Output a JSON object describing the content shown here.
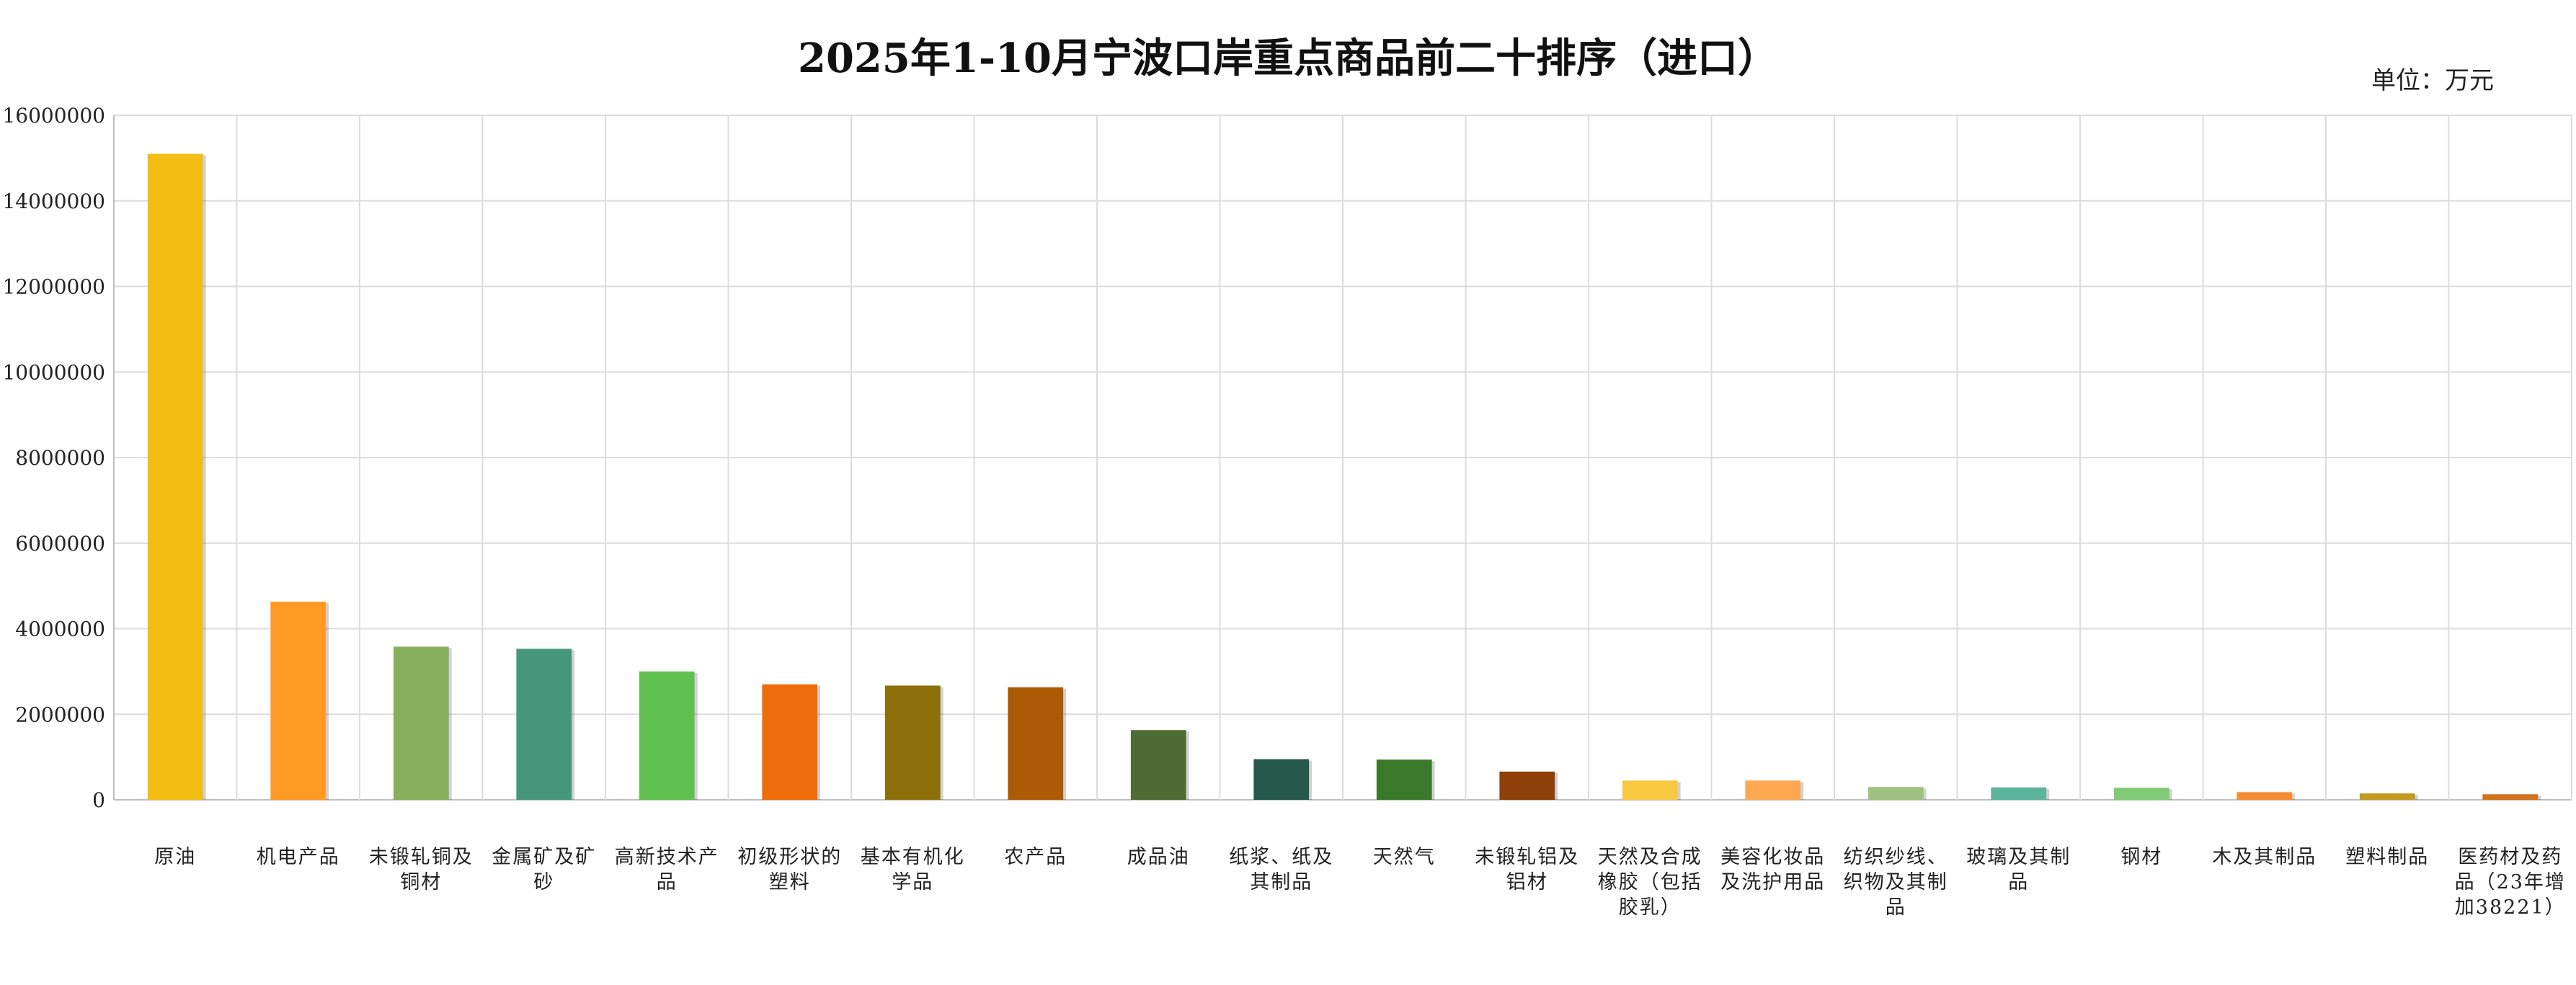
{
  "chart_data": {
    "type": "bar",
    "title": "2025年1-10月宁波口岸重点商品前二十排序（进口）",
    "unit": "单位：万元",
    "xlabel": "",
    "ylabel": "",
    "ylim": [
      0,
      16000000
    ],
    "yticks": [
      0,
      2000000,
      4000000,
      6000000,
      8000000,
      10000000,
      12000000,
      14000000,
      16000000
    ],
    "ytick_labels": [
      "0",
      "2000000",
      "4000000",
      "6000000",
      "8000000",
      "10000000",
      "12000000",
      "14000000",
      "16000000"
    ],
    "grid": true,
    "legend": "none",
    "categories": [
      [
        "原油"
      ],
      [
        "机电产品"
      ],
      [
        "未锻轧铜及",
        "铜材"
      ],
      [
        "金属矿及矿",
        "砂"
      ],
      [
        "高新技术产",
        "品"
      ],
      [
        "初级形状的",
        "塑料"
      ],
      [
        "基本有机化",
        "学品"
      ],
      [
        "农产品"
      ],
      [
        "成品油"
      ],
      [
        "纸浆、纸及",
        "其制品"
      ],
      [
        "天然气"
      ],
      [
        "未锻轧铝及",
        "铝材"
      ],
      [
        "天然及合成",
        "橡胶（包括",
        "胶乳）"
      ],
      [
        "美容化妆品",
        "及洗护用品"
      ],
      [
        "纺织纱线、",
        "织物及其制",
        "品"
      ],
      [
        "玻璃及其制",
        "品"
      ],
      [
        "钢材"
      ],
      [
        "木及其制品"
      ],
      [
        "塑料制品"
      ],
      [
        "医药材及药",
        "品（23年增",
        "加38221）"
      ]
    ],
    "values": [
      15100000,
      4630000,
      3580000,
      3530000,
      3000000,
      2700000,
      2670000,
      2630000,
      1630000,
      950000,
      940000,
      660000,
      450000,
      450000,
      300000,
      290000,
      280000,
      180000,
      150000,
      130000
    ],
    "colors": [
      "#F2BE13",
      "#FF9A25",
      "#87B05D",
      "#45967A",
      "#5FC050",
      "#F06C0A",
      "#8E700A",
      "#AD5A06",
      "#4E6B34",
      "#25574A",
      "#3A7A2A",
      "#8E4008",
      "#F8C840",
      "#FFA852",
      "#9EC27F",
      "#5BB39A",
      "#7FCA74",
      "#F58E33",
      "#C29A20",
      "#D2711A"
    ]
  }
}
